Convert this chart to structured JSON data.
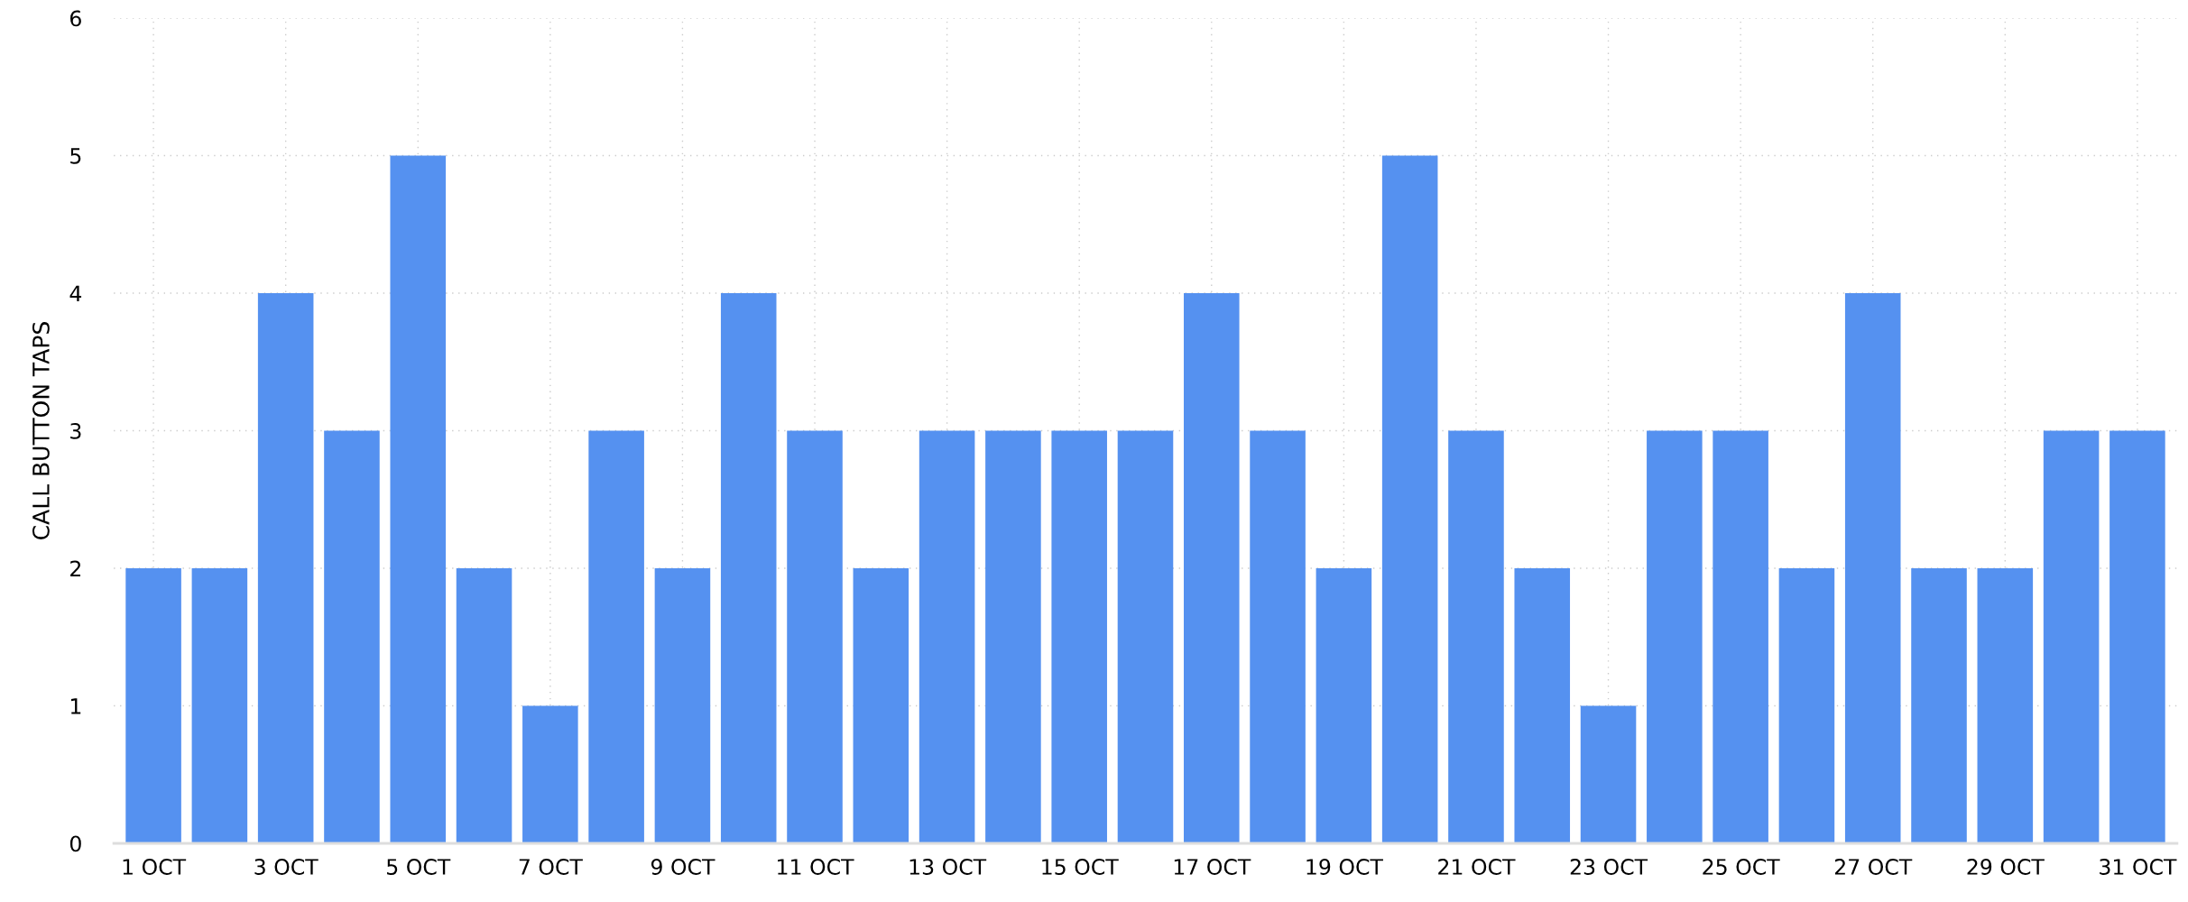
{
  "chart_data": {
    "type": "bar",
    "ylabel": "CALL BUTTON TAPS",
    "categories": [
      "1 OCT",
      null,
      "3 OCT",
      null,
      "5 OCT",
      null,
      "7 OCT",
      null,
      "9 OCT",
      null,
      "11 OCT",
      null,
      "13 OCT",
      null,
      "15 OCT",
      null,
      "17 OCT",
      null,
      "19 OCT",
      null,
      "21 OCT",
      null,
      "23 OCT",
      null,
      "25 OCT",
      null,
      "27 OCT",
      null,
      "29 OCT",
      null,
      "31 OCT"
    ],
    "values": [
      2,
      2,
      4,
      3,
      5,
      2,
      1,
      3,
      2,
      4,
      3,
      2,
      3,
      3,
      3,
      3,
      4,
      3,
      2,
      5,
      3,
      2,
      1,
      3,
      3,
      2,
      4,
      2,
      2,
      3,
      3
    ],
    "color": "#5591f0",
    "ylim": [
      0,
      6
    ],
    "yticks": [
      0,
      1,
      2,
      3,
      4,
      5,
      6
    ],
    "grid": true
  }
}
